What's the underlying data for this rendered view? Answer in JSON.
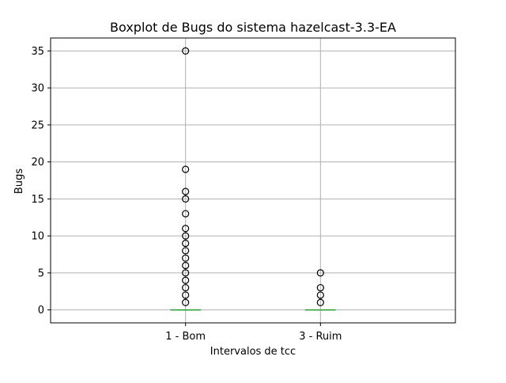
{
  "chart_data": {
    "type": "box",
    "title": "Boxplot de Bugs do sistema hazelcast-3.3-EA",
    "xlabel": "Intervalos de tcc",
    "ylabel": "Bugs",
    "ylim": [
      -1.75,
      36.75
    ],
    "yticks": [
      0,
      5,
      10,
      15,
      20,
      25,
      30,
      35
    ],
    "grid": true,
    "categories": [
      "1 - Bom",
      "3 - Ruim"
    ],
    "series": [
      {
        "category": "1 - Bom",
        "q1": 0,
        "median": 0,
        "q3": 0,
        "whisker_low": 0,
        "whisker_high": 0,
        "outliers": [
          1,
          2,
          3,
          4,
          5,
          6,
          7,
          8,
          9,
          10,
          11,
          13,
          15,
          16,
          19,
          35
        ]
      },
      {
        "category": "3 - Ruim",
        "q1": 0,
        "median": 0,
        "q3": 0,
        "whisker_low": 0,
        "whisker_high": 0,
        "outliers": [
          1,
          2,
          3,
          5
        ]
      }
    ],
    "colors": {
      "median": "#2ca02c",
      "box": "#1f77b4",
      "grid": "#b0b0b0",
      "outlier_edge": "#000000"
    }
  }
}
